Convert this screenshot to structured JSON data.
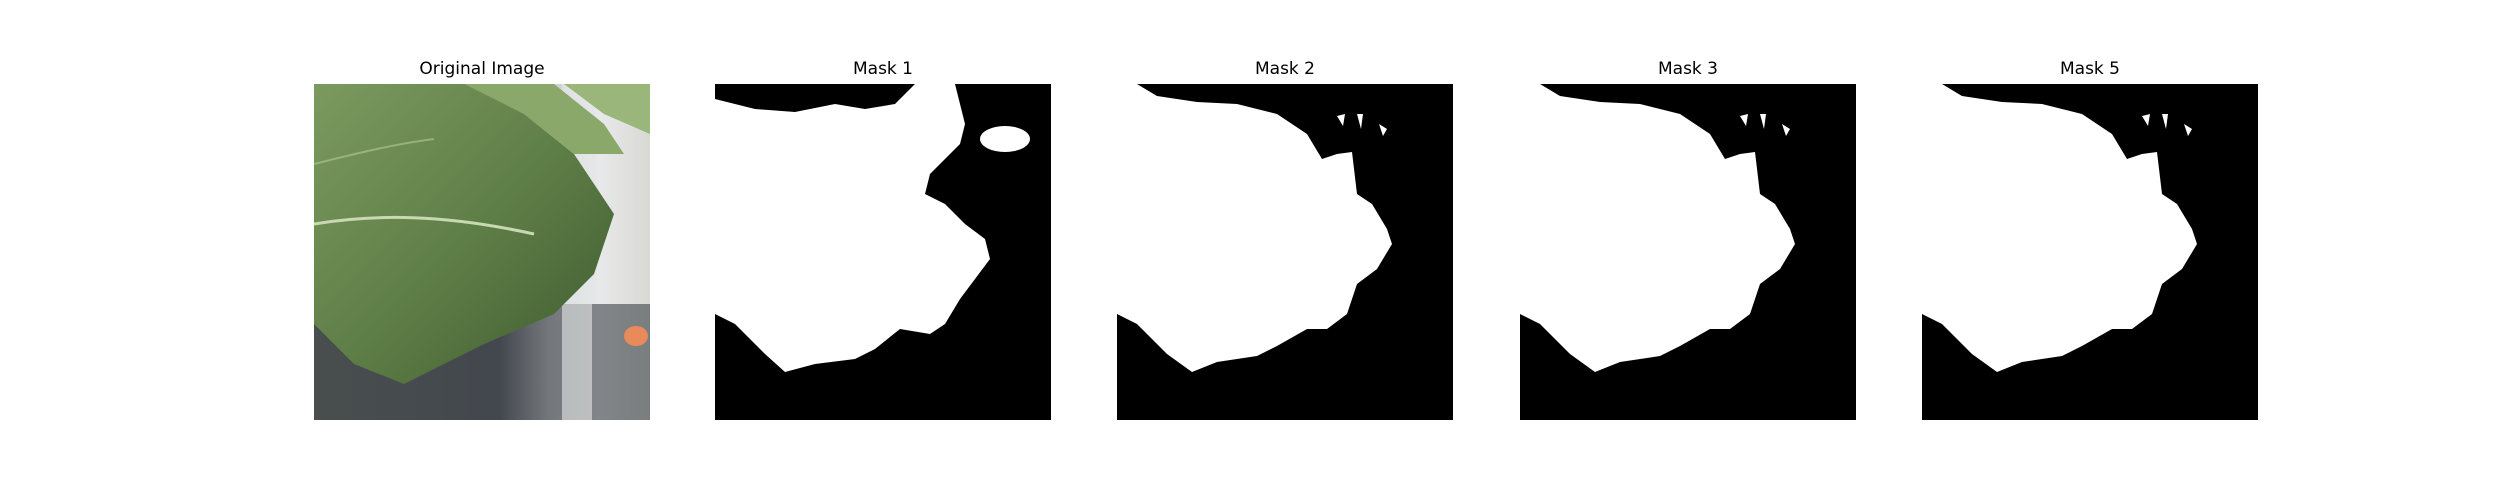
{
  "figure": {
    "panels": [
      {
        "id": "original",
        "title": "Original Image",
        "kind": "photo"
      },
      {
        "id": "mask1",
        "title": "Mask 1",
        "kind": "mask"
      },
      {
        "id": "mask2",
        "title": "Mask 2",
        "kind": "mask"
      },
      {
        "id": "mask3",
        "title": "Mask 3",
        "kind": "mask"
      },
      {
        "id": "mask5",
        "title": "Mask 5",
        "kind": "mask"
      }
    ],
    "colors": {
      "mask_foreground": "#ffffff",
      "mask_background": "#000000",
      "leaf_green": "#6f8f55",
      "leaf_dark": "#3f5a2e",
      "background_gray": "#5a5f66"
    }
  }
}
